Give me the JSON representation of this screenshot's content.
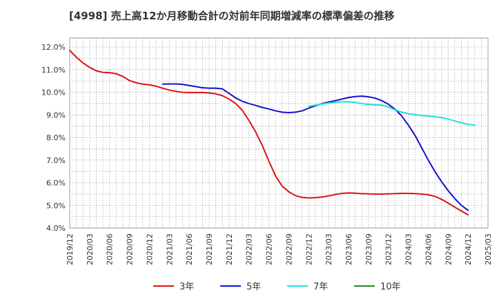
{
  "chart_data": {
    "type": "line",
    "title": "[4998]  売上高12か月移動合計の対前年同期増減率の標準偏差の推移",
    "xlabel": "",
    "ylabel": "",
    "ylim": [
      4.0,
      12.4
    ],
    "y_ticks": [
      "4.0%",
      "5.0%",
      "6.0%",
      "7.0%",
      "8.0%",
      "9.0%",
      "10.0%",
      "11.0%",
      "12.0%"
    ],
    "y_tick_values": [
      4,
      5,
      6,
      7,
      8,
      9,
      10,
      11,
      12
    ],
    "x_ticks": [
      "2019/12",
      "2020/03",
      "2020/06",
      "2020/09",
      "2020/12",
      "2021/03",
      "2021/06",
      "2021/09",
      "2021/12",
      "2022/03",
      "2022/06",
      "2022/09",
      "2022/12",
      "2023/03",
      "2023/06",
      "2023/09",
      "2023/12",
      "2024/03",
      "2024/06",
      "2024/09",
      "2024/12",
      "2025/03"
    ],
    "grid": true,
    "legend_position": "bottom",
    "series": [
      {
        "name": "3年",
        "color": "#dd1111",
        "points": [
          [
            "2019/12",
            11.85
          ],
          [
            "2020/01",
            11.55
          ],
          [
            "2020/02",
            11.3
          ],
          [
            "2020/03",
            11.1
          ],
          [
            "2020/04",
            10.95
          ],
          [
            "2020/05",
            10.88
          ],
          [
            "2020/06",
            10.87
          ],
          [
            "2020/07",
            10.82
          ],
          [
            "2020/08",
            10.7
          ],
          [
            "2020/09",
            10.52
          ],
          [
            "2020/10",
            10.42
          ],
          [
            "2020/11",
            10.36
          ],
          [
            "2020/12",
            10.33
          ],
          [
            "2021/01",
            10.27
          ],
          [
            "2021/02",
            10.18
          ],
          [
            "2021/03",
            10.1
          ],
          [
            "2021/04",
            10.04
          ],
          [
            "2021/05",
            10.0
          ],
          [
            "2021/06",
            9.99
          ],
          [
            "2021/07",
            9.99
          ],
          [
            "2021/08",
            9.99
          ],
          [
            "2021/09",
            9.97
          ],
          [
            "2021/10",
            9.93
          ],
          [
            "2021/11",
            9.85
          ],
          [
            "2021/12",
            9.7
          ],
          [
            "2022/01",
            9.5
          ],
          [
            "2022/02",
            9.2
          ],
          [
            "2022/03",
            8.75
          ],
          [
            "2022/04",
            8.25
          ],
          [
            "2022/05",
            7.65
          ],
          [
            "2022/06",
            6.95
          ],
          [
            "2022/07",
            6.3
          ],
          [
            "2022/08",
            5.85
          ],
          [
            "2022/09",
            5.6
          ],
          [
            "2022/10",
            5.43
          ],
          [
            "2022/11",
            5.35
          ],
          [
            "2022/12",
            5.33
          ],
          [
            "2023/01",
            5.34
          ],
          [
            "2023/02",
            5.37
          ],
          [
            "2023/03",
            5.42
          ],
          [
            "2023/04",
            5.48
          ],
          [
            "2023/05",
            5.53
          ],
          [
            "2023/06",
            5.55
          ],
          [
            "2023/07",
            5.54
          ],
          [
            "2023/08",
            5.52
          ],
          [
            "2023/09",
            5.51
          ],
          [
            "2023/10",
            5.5
          ],
          [
            "2023/11",
            5.5
          ],
          [
            "2023/12",
            5.51
          ],
          [
            "2024/01",
            5.52
          ],
          [
            "2024/02",
            5.53
          ],
          [
            "2024/03",
            5.53
          ],
          [
            "2024/04",
            5.52
          ],
          [
            "2024/05",
            5.5
          ],
          [
            "2024/06",
            5.47
          ],
          [
            "2024/07",
            5.4
          ],
          [
            "2024/08",
            5.27
          ],
          [
            "2024/09",
            5.1
          ],
          [
            "2024/10",
            4.92
          ],
          [
            "2024/11",
            4.75
          ],
          [
            "2024/12",
            4.58
          ]
        ]
      },
      {
        "name": "5年",
        "color": "#1111cc",
        "points": [
          [
            "2021/02",
            10.36
          ],
          [
            "2021/03",
            10.37
          ],
          [
            "2021/04",
            10.37
          ],
          [
            "2021/05",
            10.35
          ],
          [
            "2021/06",
            10.3
          ],
          [
            "2021/07",
            10.25
          ],
          [
            "2021/08",
            10.2
          ],
          [
            "2021/09",
            10.18
          ],
          [
            "2021/10",
            10.18
          ],
          [
            "2021/11",
            10.15
          ],
          [
            "2021/12",
            9.95
          ],
          [
            "2022/01",
            9.75
          ],
          [
            "2022/02",
            9.6
          ],
          [
            "2022/03",
            9.5
          ],
          [
            "2022/04",
            9.42
          ],
          [
            "2022/05",
            9.33
          ],
          [
            "2022/06",
            9.26
          ],
          [
            "2022/07",
            9.18
          ],
          [
            "2022/08",
            9.12
          ],
          [
            "2022/09",
            9.1
          ],
          [
            "2022/10",
            9.12
          ],
          [
            "2022/11",
            9.18
          ],
          [
            "2022/12",
            9.3
          ],
          [
            "2023/01",
            9.4
          ],
          [
            "2023/02",
            9.5
          ],
          [
            "2023/03",
            9.57
          ],
          [
            "2023/04",
            9.63
          ],
          [
            "2023/05",
            9.7
          ],
          [
            "2023/06",
            9.77
          ],
          [
            "2023/07",
            9.81
          ],
          [
            "2023/08",
            9.83
          ],
          [
            "2023/09",
            9.8
          ],
          [
            "2023/10",
            9.74
          ],
          [
            "2023/11",
            9.63
          ],
          [
            "2023/12",
            9.47
          ],
          [
            "2024/01",
            9.25
          ],
          [
            "2024/02",
            8.95
          ],
          [
            "2024/03",
            8.55
          ],
          [
            "2024/04",
            8.1
          ],
          [
            "2024/05",
            7.55
          ],
          [
            "2024/06",
            7.0
          ],
          [
            "2024/07",
            6.5
          ],
          [
            "2024/08",
            6.05
          ],
          [
            "2024/09",
            5.65
          ],
          [
            "2024/10",
            5.3
          ],
          [
            "2024/11",
            5.0
          ],
          [
            "2024/12",
            4.78
          ]
        ]
      },
      {
        "name": "7年",
        "color": "#22dddd",
        "points": [
          [
            "2022/12",
            9.38
          ],
          [
            "2023/01",
            9.43
          ],
          [
            "2023/02",
            9.48
          ],
          [
            "2023/03",
            9.53
          ],
          [
            "2023/04",
            9.56
          ],
          [
            "2023/05",
            9.58
          ],
          [
            "2023/06",
            9.58
          ],
          [
            "2023/07",
            9.55
          ],
          [
            "2023/08",
            9.5
          ],
          [
            "2023/09",
            9.46
          ],
          [
            "2023/10",
            9.44
          ],
          [
            "2023/11",
            9.43
          ],
          [
            "2023/12",
            9.35
          ],
          [
            "2024/01",
            9.22
          ],
          [
            "2024/02",
            9.12
          ],
          [
            "2024/03",
            9.06
          ],
          [
            "2024/04",
            9.01
          ],
          [
            "2024/05",
            8.97
          ],
          [
            "2024/06",
            8.95
          ],
          [
            "2024/07",
            8.92
          ],
          [
            "2024/08",
            8.88
          ],
          [
            "2024/09",
            8.82
          ],
          [
            "2024/10",
            8.73
          ],
          [
            "2024/11",
            8.65
          ],
          [
            "2024/12",
            8.58
          ],
          [
            "2025/01",
            8.55
          ]
        ]
      },
      {
        "name": "10年",
        "color": "#228822",
        "points": []
      }
    ]
  }
}
